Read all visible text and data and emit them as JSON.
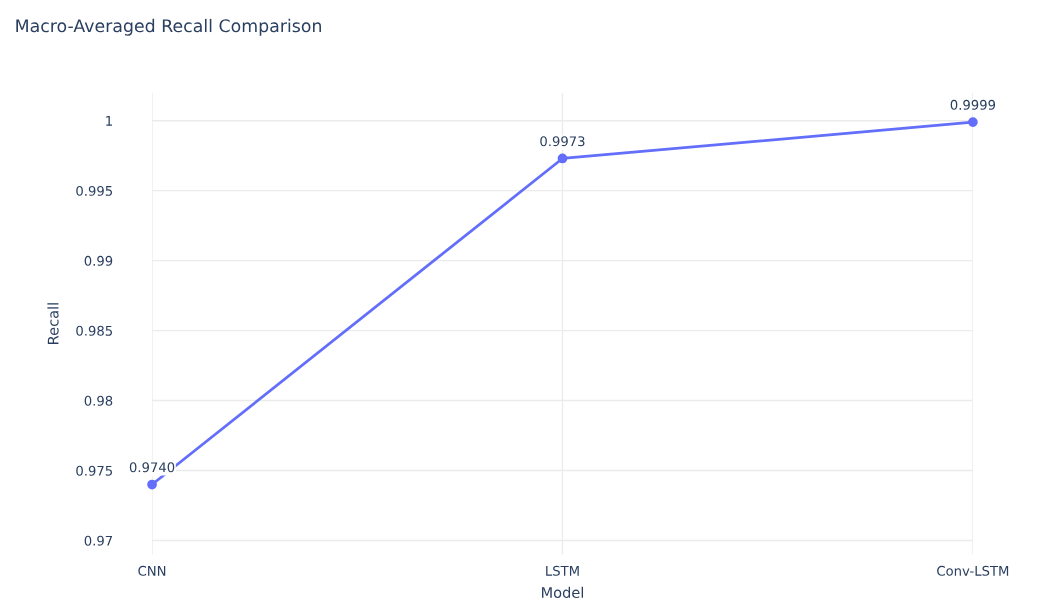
{
  "chart_data": {
    "type": "line",
    "title": "Macro-Averaged Recall Comparison",
    "xlabel": "Model",
    "ylabel": "Recall",
    "categories": [
      "CNN",
      "LSTM",
      "Conv-LSTM"
    ],
    "series": [
      {
        "color": "#636efa",
        "values": [
          0.974,
          0.9973,
          0.9999
        ],
        "value_labels": [
          "0.9740",
          "0.9973",
          "0.9999"
        ]
      }
    ],
    "ylim": [
      0.969,
      1.002
    ],
    "yticks": [
      0.97,
      0.975,
      0.98,
      0.985,
      0.99,
      0.995,
      {
        "value": 1,
        "label": "1"
      }
    ],
    "grid": true,
    "marker": "circle",
    "line_style": "solid"
  }
}
